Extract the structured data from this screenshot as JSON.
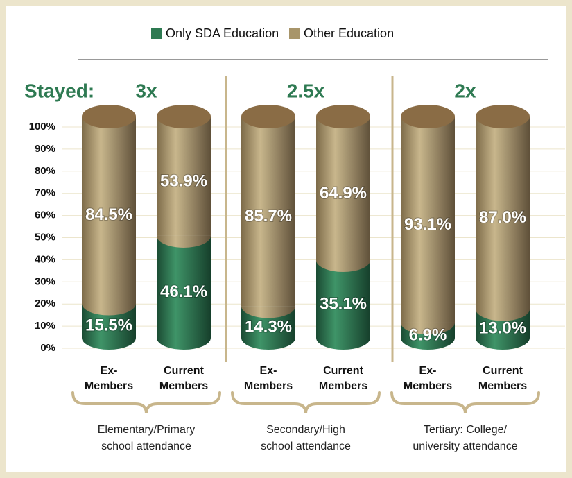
{
  "chart_data": {
    "type": "stacked-cylinder",
    "stayed_label": "Stayed:",
    "categories": [
      "Ex-\nMembers",
      "Current\nMembers",
      "Ex-\nMembers",
      "Current\nMembers",
      "Ex-\nMembers",
      "Current\nMembers"
    ],
    "groups": [
      {
        "label": "Elementary/Primary\nschool attendance",
        "stayed": "3x"
      },
      {
        "label": "Secondary/High\nschool attendance",
        "stayed": "2.5x"
      },
      {
        "label": "Tertiary: College/\nuniversity attendance",
        "stayed": "2x"
      }
    ],
    "series": [
      {
        "name": "Only SDA Education",
        "color": "#2e7a52",
        "values": [
          15.5,
          46.1,
          14.3,
          35.1,
          6.9,
          13.0
        ],
        "value_labels": [
          "15.5%",
          "46.1%",
          "14.3%",
          "35.1%",
          "6.9%",
          "13.0%"
        ]
      },
      {
        "name": "Other Education",
        "color": "#a8956a",
        "values": [
          84.5,
          53.9,
          85.7,
          64.9,
          93.1,
          87.0
        ],
        "value_labels": [
          "84.5%",
          "53.9%",
          "85.7%",
          "64.9%",
          "93.1%",
          "87.0%"
        ]
      }
    ],
    "ylim": [
      0,
      100
    ],
    "yticks": [
      {
        "value": 0,
        "label": "0%"
      },
      {
        "value": 10,
        "label": "10%"
      },
      {
        "value": 20,
        "label": "20%"
      },
      {
        "value": 30,
        "label": "30%"
      },
      {
        "value": 40,
        "label": "40%"
      },
      {
        "value": 50,
        "label": "50%"
      },
      {
        "value": 60,
        "label": "60%"
      },
      {
        "value": 70,
        "label": "70%"
      },
      {
        "value": 80,
        "label": "80%"
      },
      {
        "value": 90,
        "label": "90%"
      },
      {
        "value": 100,
        "label": "100%"
      }
    ],
    "grid": true
  }
}
